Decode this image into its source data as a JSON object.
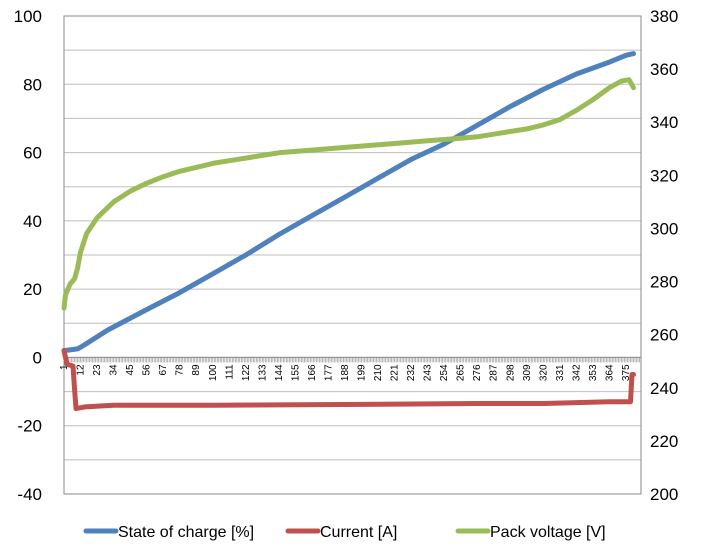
{
  "chart_data": {
    "type": "line",
    "x": {
      "tick_labels": [
        "1",
        "12",
        "23",
        "34",
        "45",
        "56",
        "67",
        "78",
        "89",
        "100",
        "111",
        "122",
        "133",
        "144",
        "155",
        "166",
        "177",
        "188",
        "199",
        "210",
        "221",
        "232",
        "243",
        "254",
        "265",
        "276",
        "287",
        "298",
        "309",
        "320",
        "331",
        "342",
        "353",
        "364",
        "375"
      ],
      "min": 1,
      "max": 385
    },
    "y_left": {
      "min": -40,
      "max": 100,
      "step": 20,
      "tick_labels": [
        "-40",
        "-20",
        "0",
        "20",
        "40",
        "60",
        "80",
        "100"
      ]
    },
    "y_right": {
      "min": 200,
      "max": 380,
      "step": 20,
      "tick_labels": [
        "200",
        "220",
        "240",
        "260",
        "280",
        "300",
        "320",
        "340",
        "360",
        "380"
      ]
    },
    "grid": true,
    "legend_position": "bottom",
    "series": [
      {
        "name": "State of charge [%]",
        "color": "#4f81bd",
        "axis": "left",
        "points": [
          [
            1,
            2
          ],
          [
            10,
            2.5
          ],
          [
            14,
            3.5
          ],
          [
            30,
            8
          ],
          [
            56,
            14
          ],
          [
            78,
            19
          ],
          [
            100,
            24.5
          ],
          [
            122,
            30
          ],
          [
            144,
            36
          ],
          [
            166,
            41.5
          ],
          [
            188,
            47
          ],
          [
            210,
            52.5
          ],
          [
            232,
            58
          ],
          [
            254,
            62.5
          ],
          [
            276,
            68
          ],
          [
            298,
            73.5
          ],
          [
            320,
            78.5
          ],
          [
            342,
            83
          ],
          [
            364,
            86.5
          ],
          [
            375,
            88.5
          ],
          [
            380,
            89
          ]
        ]
      },
      {
        "name": "Current [A]",
        "color": "#c0504d",
        "axis": "left",
        "points": [
          [
            1,
            2
          ],
          [
            2,
            0
          ],
          [
            3,
            -2
          ],
          [
            7,
            -2.5
          ],
          [
            8,
            -9
          ],
          [
            9,
            -15
          ],
          [
            15,
            -14.5
          ],
          [
            34,
            -14
          ],
          [
            100,
            -14
          ],
          [
            188,
            -13.8
          ],
          [
            276,
            -13.5
          ],
          [
            320,
            -13.5
          ],
          [
            364,
            -13
          ],
          [
            378,
            -13
          ],
          [
            379,
            -5
          ],
          [
            380,
            -5
          ]
        ]
      },
      {
        "name": "Pack voltage [V]",
        "color": "#9bbb59",
        "axis": "right",
        "points": [
          [
            1,
            270
          ],
          [
            2,
            275
          ],
          [
            5,
            279
          ],
          [
            8,
            281
          ],
          [
            10,
            285
          ],
          [
            12,
            291
          ],
          [
            16,
            298
          ],
          [
            23,
            304
          ],
          [
            34,
            310
          ],
          [
            45,
            314
          ],
          [
            56,
            317
          ],
          [
            67,
            319.5
          ],
          [
            78,
            321.5
          ],
          [
            89,
            323
          ],
          [
            100,
            324.5
          ],
          [
            111,
            325.5
          ],
          [
            122,
            326.5
          ],
          [
            133,
            327.5
          ],
          [
            144,
            328.5
          ],
          [
            155,
            329
          ],
          [
            166,
            329.5
          ],
          [
            177,
            330
          ],
          [
            188,
            330.5
          ],
          [
            199,
            331
          ],
          [
            210,
            331.5
          ],
          [
            221,
            332
          ],
          [
            232,
            332.5
          ],
          [
            243,
            333
          ],
          [
            254,
            333.5
          ],
          [
            265,
            334
          ],
          [
            276,
            334.5
          ],
          [
            287,
            335.5
          ],
          [
            298,
            336.5
          ],
          [
            309,
            337.5
          ],
          [
            320,
            339
          ],
          [
            331,
            341
          ],
          [
            342,
            344.5
          ],
          [
            353,
            348.5
          ],
          [
            364,
            353
          ],
          [
            372,
            355.5
          ],
          [
            377,
            356
          ],
          [
            380,
            353
          ]
        ]
      }
    ]
  }
}
